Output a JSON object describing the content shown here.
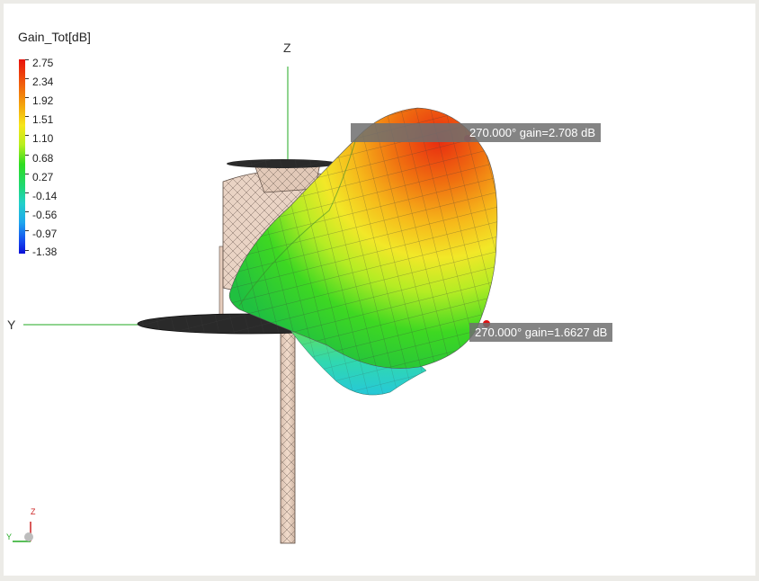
{
  "legend": {
    "title": "Gain_Tot[dB]",
    "ticks": [
      "2.75",
      "2.34",
      "1.92",
      "1.51",
      "1.10",
      "0.68",
      "0.27",
      "-0.14",
      "-0.56",
      "-0.97",
      "-1.38"
    ]
  },
  "markers": {
    "max": "270.000° gain=2.708 dB",
    "second": "270.000° gain=1.6627 dB"
  },
  "axes": {
    "z_label": "Z",
    "y_label": "Y",
    "mini_z": "Z",
    "mini_y": "Y"
  },
  "colors": {
    "marker_red": "#e01010",
    "z_axis": "#22aa22",
    "y_axis": "#22aa22",
    "structure": "#e8cfc0"
  }
}
